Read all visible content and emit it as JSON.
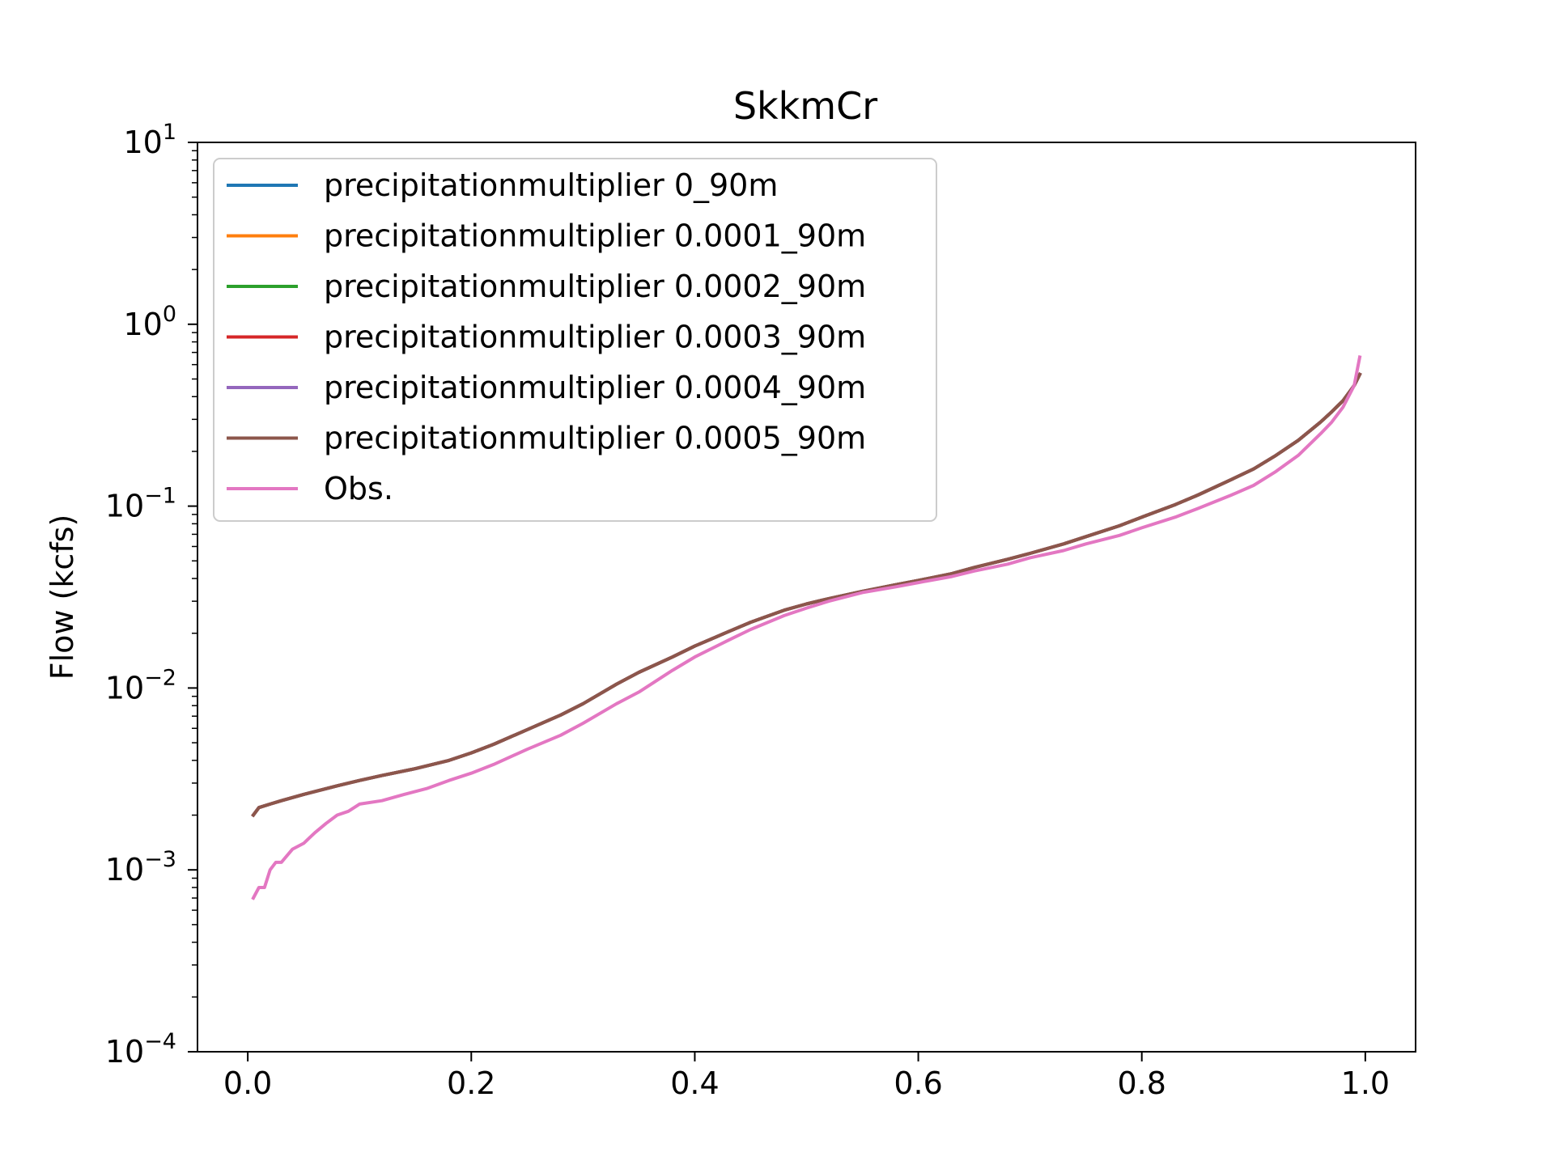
{
  "chart_data": {
    "type": "line",
    "title": "SkkmCr",
    "xlabel": "",
    "ylabel": "Flow (kcfs)",
    "xlim": [
      -0.045,
      1.045
    ],
    "ylim": [
      0.0001,
      10
    ],
    "yscale": "log",
    "grid": false,
    "legend_position": "top-left",
    "x_ticks": [
      {
        "value": 0.0,
        "label": "0.0"
      },
      {
        "value": 0.2,
        "label": "0.2"
      },
      {
        "value": 0.4,
        "label": "0.4"
      },
      {
        "value": 0.6,
        "label": "0.6"
      },
      {
        "value": 0.8,
        "label": "0.8"
      },
      {
        "value": 1.0,
        "label": "1.0"
      }
    ],
    "y_ticks": [
      {
        "value": 10,
        "base": "10",
        "exp": "1"
      },
      {
        "value": 1,
        "base": "10",
        "exp": "0"
      },
      {
        "value": 0.1,
        "base": "10",
        "exp": "−1"
      },
      {
        "value": 0.01,
        "base": "10",
        "exp": "−2"
      },
      {
        "value": 0.001,
        "base": "10",
        "exp": "−3"
      },
      {
        "value": 0.0001,
        "base": "10",
        "exp": "−4"
      }
    ],
    "sim_curve": {
      "x": [
        0.005,
        0.01,
        0.02,
        0.03,
        0.05,
        0.08,
        0.1,
        0.12,
        0.15,
        0.18,
        0.2,
        0.22,
        0.25,
        0.28,
        0.3,
        0.33,
        0.35,
        0.38,
        0.4,
        0.43,
        0.45,
        0.48,
        0.5,
        0.52,
        0.55,
        0.58,
        0.6,
        0.63,
        0.65,
        0.68,
        0.7,
        0.73,
        0.75,
        0.78,
        0.8,
        0.83,
        0.85,
        0.88,
        0.9,
        0.92,
        0.94,
        0.96,
        0.97,
        0.98,
        0.99,
        0.995
      ],
      "y": [
        0.002,
        0.0022,
        0.0023,
        0.0024,
        0.0026,
        0.0029,
        0.0031,
        0.0033,
        0.0036,
        0.004,
        0.0044,
        0.0049,
        0.0059,
        0.0071,
        0.0082,
        0.0105,
        0.0122,
        0.0148,
        0.017,
        0.0204,
        0.023,
        0.0268,
        0.029,
        0.031,
        0.034,
        0.037,
        0.039,
        0.0425,
        0.046,
        0.051,
        0.055,
        0.062,
        0.068,
        0.078,
        0.087,
        0.102,
        0.115,
        0.14,
        0.16,
        0.19,
        0.23,
        0.29,
        0.33,
        0.38,
        0.46,
        0.53
      ]
    },
    "series": [
      {
        "name": "precipitationmultiplier 0_90m",
        "color": "#1f77b4",
        "curve": "sim"
      },
      {
        "name": "precipitationmultiplier 0.0001_90m",
        "color": "#ff7f0e",
        "curve": "sim"
      },
      {
        "name": "precipitationmultiplier 0.0002_90m",
        "color": "#2ca02c",
        "curve": "sim"
      },
      {
        "name": "precipitationmultiplier 0.0003_90m",
        "color": "#d62728",
        "curve": "sim"
      },
      {
        "name": "precipitationmultiplier 0.0004_90m",
        "color": "#9467bd",
        "curve": "sim"
      },
      {
        "name": "precipitationmultiplier 0.0005_90m",
        "color": "#8c564b",
        "curve": "sim"
      },
      {
        "name": "Obs.",
        "color": "#e377c2",
        "curve": "own",
        "x": [
          0.005,
          0.01,
          0.015,
          0.02,
          0.025,
          0.03,
          0.04,
          0.05,
          0.06,
          0.07,
          0.08,
          0.09,
          0.1,
          0.12,
          0.14,
          0.16,
          0.18,
          0.2,
          0.22,
          0.25,
          0.28,
          0.3,
          0.33,
          0.35,
          0.38,
          0.4,
          0.43,
          0.45,
          0.48,
          0.5,
          0.52,
          0.55,
          0.58,
          0.6,
          0.63,
          0.65,
          0.68,
          0.7,
          0.73,
          0.75,
          0.78,
          0.8,
          0.83,
          0.85,
          0.88,
          0.9,
          0.92,
          0.94,
          0.96,
          0.97,
          0.98,
          0.99,
          0.995
        ],
        "y": [
          0.0007,
          0.0008,
          0.0008,
          0.001,
          0.0011,
          0.0011,
          0.0013,
          0.0014,
          0.0016,
          0.0018,
          0.002,
          0.0021,
          0.0023,
          0.0024,
          0.0026,
          0.0028,
          0.0031,
          0.0034,
          0.0038,
          0.0046,
          0.0055,
          0.0064,
          0.0082,
          0.0095,
          0.0125,
          0.0148,
          0.0183,
          0.021,
          0.025,
          0.0275,
          0.03,
          0.0335,
          0.036,
          0.038,
          0.041,
          0.044,
          0.048,
          0.052,
          0.057,
          0.062,
          0.069,
          0.076,
          0.087,
          0.097,
          0.115,
          0.13,
          0.155,
          0.19,
          0.25,
          0.29,
          0.35,
          0.46,
          0.66
        ]
      }
    ]
  }
}
